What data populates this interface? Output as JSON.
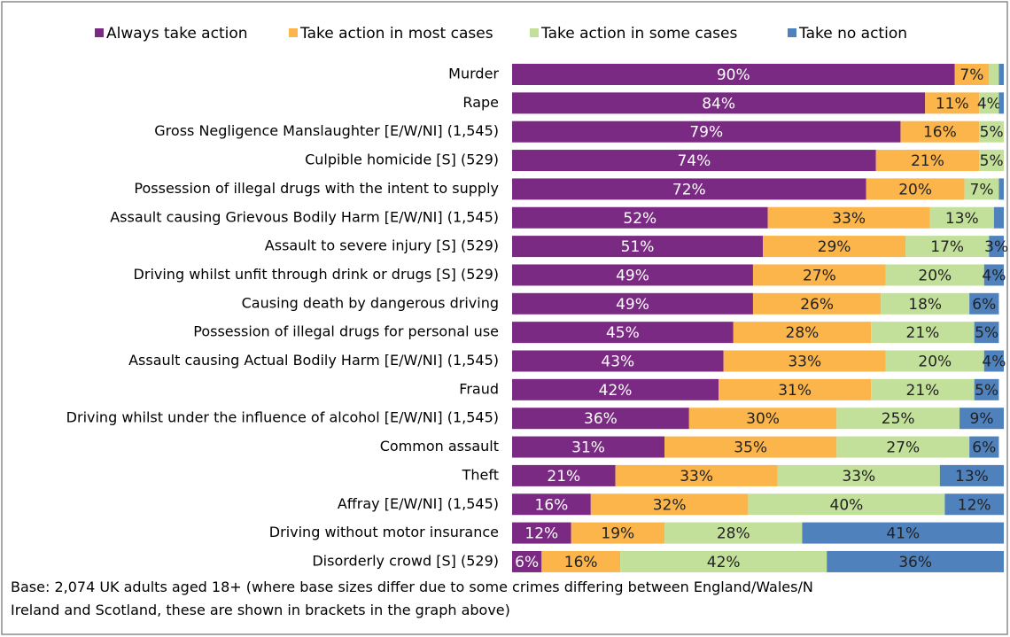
{
  "chart_data": {
    "type": "stacked_bar_horizontal",
    "categories": [
      "Murder",
      "Rape",
      "Gross Negligence Manslaughter [E/W/NI] (1,545)",
      "Culpible homicide [S] (529)",
      "Possession of illegal drugs with the intent to supply",
      "Assault causing Grievous Bodily Harm [E/W/NI] (1,545)",
      "Assault to severe injury [S] (529)",
      "Driving whilst unfit through drink or drugs [S] (529)",
      "Causing death by dangerous driving",
      "Possession of illegal drugs for personal use",
      "Assault causing Actual Bodily Harm [E/W/NI] (1,545)",
      "Fraud",
      "Driving whilst under the influence of alcohol [E/W/NI] (1,545)",
      "Common assault",
      "Theft",
      "Affray [E/W/NI] (1,545)",
      "Driving without motor insurance",
      "Disorderly crowd [S] (529)"
    ],
    "series": [
      {
        "name": "Always take action",
        "color": "#7b2a84",
        "values": [
          90,
          84,
          79,
          74,
          72,
          52,
          51,
          49,
          49,
          45,
          43,
          42,
          36,
          31,
          21,
          16,
          12,
          6
        ],
        "value_labels": [
          "90%",
          "84%",
          "79%",
          "74%",
          "72%",
          "52%",
          "51%",
          "49%",
          "49%",
          "45%",
          "43%",
          "42%",
          "36%",
          "31%",
          "21%",
          "16%",
          "12%",
          "6%"
        ]
      },
      {
        "name": "Take action in most cases",
        "color": "#fbb54b",
        "values": [
          7,
          11,
          16,
          21,
          20,
          33,
          29,
          27,
          26,
          28,
          33,
          31,
          30,
          35,
          33,
          32,
          19,
          16
        ],
        "value_labels": [
          "7%",
          "11%",
          "16%",
          "21%",
          "20%",
          "33%",
          "29%",
          "27%",
          "26%",
          "28%",
          "33%",
          "31%",
          "30%",
          "35%",
          "33%",
          "32%",
          "19%",
          "16%"
        ]
      },
      {
        "name": "Take action in some cases",
        "color": "#c3e09a",
        "values": [
          2,
          4,
          5,
          5,
          7,
          13,
          17,
          20,
          18,
          21,
          20,
          21,
          25,
          27,
          33,
          40,
          28,
          42
        ],
        "value_labels": [
          null,
          "4%",
          "5%",
          "5%",
          "7%",
          "13%",
          "17%",
          "20%",
          "18%",
          "21%",
          "20%",
          "21%",
          "25%",
          "27%",
          "33%",
          "40%",
          "28%",
          "42%"
        ]
      },
      {
        "name": "Take no action",
        "color": "#4f81bd",
        "values": [
          1,
          1,
          0,
          0,
          1,
          2,
          3,
          4,
          6,
          5,
          4,
          5,
          9,
          6,
          13,
          12,
          41,
          36
        ],
        "value_labels": [
          null,
          null,
          null,
          null,
          null,
          null,
          "3%",
          "4%",
          "6%",
          "5%",
          "4%",
          "5%",
          "9%",
          "6%",
          "13%",
          "12%",
          "41%",
          "36%"
        ]
      }
    ],
    "xlim": [
      0,
      100
    ],
    "legend": "top",
    "footnote": [
      "Base: 2,074 UK adults aged 18+ (where base sizes differ due to some crimes differing between England/Wales/N",
      "Ireland and Scotland, these are shown in brackets in the graph above)"
    ]
  }
}
